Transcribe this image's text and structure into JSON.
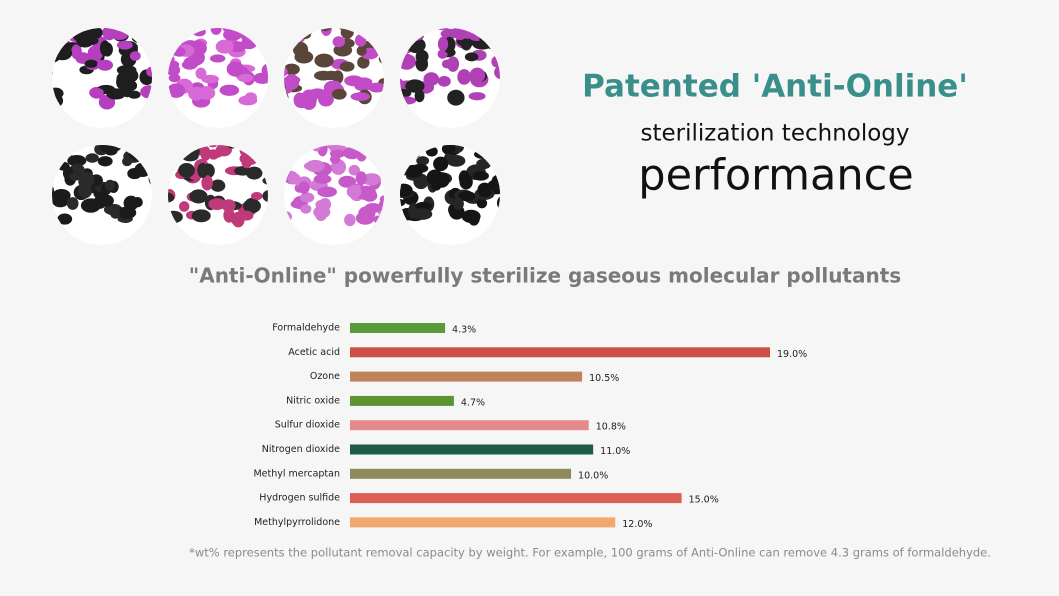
{
  "header": {
    "title": "Patented 'Anti-Online'",
    "subtitle": "sterilization technology",
    "headline": "performance"
  },
  "chart_data": {
    "type": "hbar",
    "title": "\"Anti-Online\" powerfully sterilize gaseous  molecular pollutants",
    "categories": [
      "Formaldehyde",
      "Acetic acid",
      "Ozone",
      "Nitric oxide",
      "Sulfur dioxide",
      "Nitrogen dioxide",
      "Methyl mercaptan",
      "Hydrogen sulfide",
      "Methylpyrrolidone"
    ],
    "values": [
      4.3,
      19.0,
      10.5,
      4.7,
      10.8,
      11.0,
      10.0,
      15.0,
      12.0
    ],
    "value_labels": [
      "4.3%",
      "19.0%",
      "10.5%",
      "4.7%",
      "10.8%",
      "11.0%",
      "10.0%",
      "15.0%",
      "12.0%"
    ],
    "colors": [
      "#5a9a3c",
      "#cc5048",
      "#c0845c",
      "#5c9432",
      "#e58a8c",
      "#1f5c45",
      "#8e8a5c",
      "#dc5f55",
      "#f0a86e"
    ],
    "footnote": "*wt% represents the pollutant removal capacity by weight. For example, 100 grams of Anti-Online can remove 4.3 grams of formaldehyde."
  }
}
